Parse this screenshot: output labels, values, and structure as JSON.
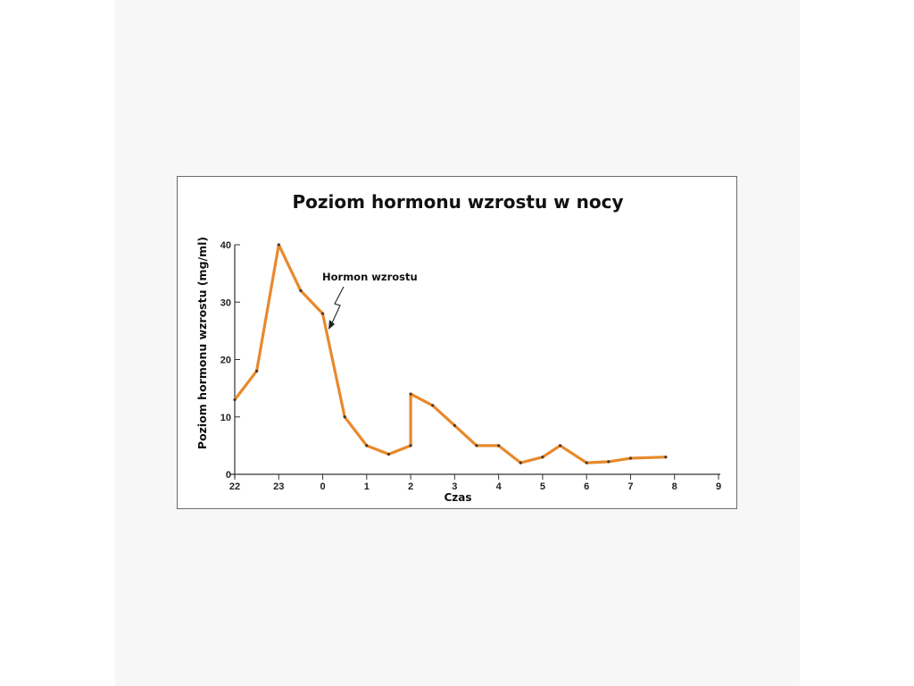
{
  "chart_data": {
    "type": "line",
    "title": "Poziom hormonu wzrostu w nocy",
    "xlabel": "Czas",
    "ylabel": "Poziom hormonu wzrostu (mg/ml)",
    "x_tick_labels": [
      "22",
      "23",
      "0",
      "1",
      "2",
      "3",
      "4",
      "5",
      "6",
      "7",
      "8",
      "9"
    ],
    "y_ticks": [
      0,
      10,
      20,
      30,
      40
    ],
    "xlim": [
      22,
      33
    ],
    "ylim": [
      0,
      40
    ],
    "grid": false,
    "series": [
      {
        "color": "#e8892c",
        "x": [
          22,
          22.5,
          23,
          23.5,
          24,
          24.5,
          25,
          25.5,
          26,
          26,
          26.5,
          27,
          27.5,
          28,
          28.5,
          29,
          29.4,
          30,
          30.5,
          31,
          31.8
        ],
        "y": [
          13,
          18,
          40,
          32,
          28,
          10,
          5,
          3.5,
          5,
          14,
          12,
          8.5,
          5,
          5,
          2,
          3,
          5,
          2,
          2.2,
          2.8,
          3
        ]
      }
    ],
    "annotations": [
      {
        "text": "Hormon wzrostu",
        "x": 24,
        "y": 28
      }
    ]
  }
}
